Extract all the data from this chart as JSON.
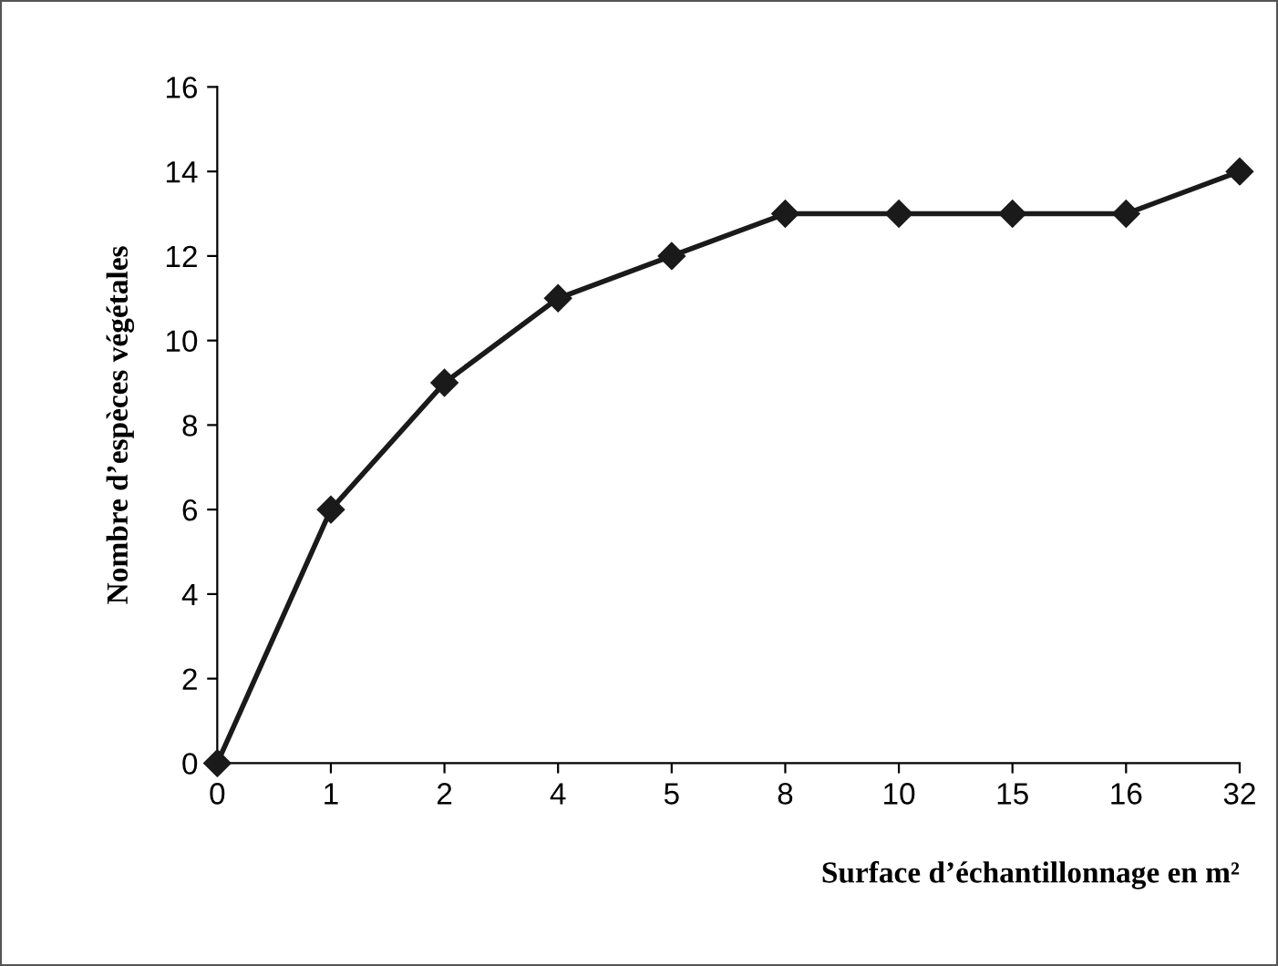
{
  "chart_data": {
    "type": "line",
    "xlabel": "Surface d’échantillonnage en m²",
    "ylabel": "Nombre d’espèces végétales",
    "categories": [
      "0",
      "1",
      "2",
      "4",
      "5",
      "8",
      "10",
      "15",
      "16",
      "32"
    ],
    "series": [
      {
        "color": "#1a1a1a",
        "values": [
          0,
          6,
          9,
          11,
          12,
          13,
          13,
          13,
          13,
          14
        ]
      }
    ],
    "ylim": [
      0,
      16
    ],
    "yticks": [
      0,
      2,
      4,
      6,
      8,
      10,
      12,
      14,
      16
    ],
    "grid": false,
    "legend": false,
    "marker": "diamond",
    "line_style": "solid"
  }
}
